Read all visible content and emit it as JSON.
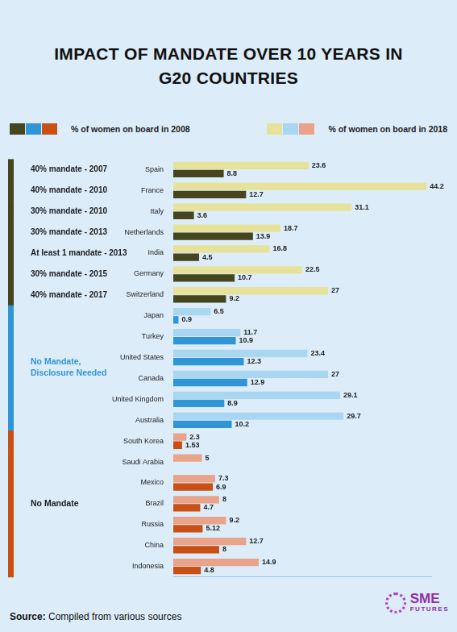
{
  "chart_data": {
    "type": "bar",
    "title": "IMPACT OF MANDATE OVER 10 YEARS IN G20 COUNTRIES",
    "orientation": "horizontal",
    "categories": [
      "Spain",
      "France",
      "Italy",
      "Netherlands",
      "India",
      "Germany",
      "Switzerland",
      "Japan",
      "Turkey",
      "United States",
      "Canada",
      "United Kingdom",
      "Australia",
      "South Korea",
      "Saudi Arabia",
      "Mexico",
      "Brazil",
      "Russia",
      "China",
      "Indonesia"
    ],
    "mandates": [
      "40% mandate - 2007",
      "40% mandate - 2010",
      "30% mandate - 2010",
      "30% mandate - 2013",
      "At least 1 mandate - 2013",
      "30% mandate - 2015",
      "40% mandate - 2017",
      null,
      null,
      null,
      null,
      null,
      null,
      null,
      null,
      null,
      null,
      null,
      null,
      null
    ],
    "groups": [
      {
        "label": "No Mandate, Disclosure Needed",
        "from": "Japan",
        "to": "Australia"
      },
      {
        "label": "No Mandate",
        "from": "South Korea",
        "to": "Indonesia"
      }
    ],
    "series": [
      {
        "name": "% of women on board in 2008",
        "colors": [
          "#45451f",
          "#45451f",
          "#45451f",
          "#45451f",
          "#45451f",
          "#45451f",
          "#45451f",
          "#2f95d6",
          "#2f95d6",
          "#2f95d6",
          "#2f95d6",
          "#2f95d6",
          "#2f95d6",
          "#c94f14",
          "#c94f14",
          "#c94f14",
          "#c94f14",
          "#c94f14",
          "#c94f14",
          "#c94f14"
        ],
        "values": [
          8.8,
          12.7,
          3.6,
          13.9,
          4.5,
          10.7,
          9.2,
          0.9,
          10.9,
          12.3,
          12.9,
          8.9,
          10.2,
          1.53,
          null,
          6.9,
          4.7,
          5.12,
          8,
          4.8
        ]
      },
      {
        "name": "% of women on board in 2018",
        "colors": [
          "#e6e29a",
          "#e6e29a",
          "#e6e29a",
          "#e6e29a",
          "#e6e29a",
          "#e6e29a",
          "#e6e29a",
          "#a9d6f1",
          "#a9d6f1",
          "#a9d6f1",
          "#a9d6f1",
          "#a9d6f1",
          "#a9d6f1",
          "#e8a38a",
          "#e8a38a",
          "#e8a38a",
          "#e8a38a",
          "#e8a38a",
          "#e8a38a",
          "#e8a38a"
        ],
        "values": [
          23.6,
          44.2,
          31.1,
          18.7,
          16.8,
          22.5,
          27,
          6.5,
          11.7,
          23.4,
          27,
          29.1,
          29.7,
          2.3,
          5,
          7.3,
          8,
          9.2,
          12.7,
          14.9
        ]
      }
    ],
    "xlim": [
      0,
      45
    ],
    "grid": false,
    "legend": "top",
    "data_labels": true,
    "tick_labels": "y"
  },
  "source": "Source: Compiled from various sources",
  "branding": "SME FUTURES"
}
